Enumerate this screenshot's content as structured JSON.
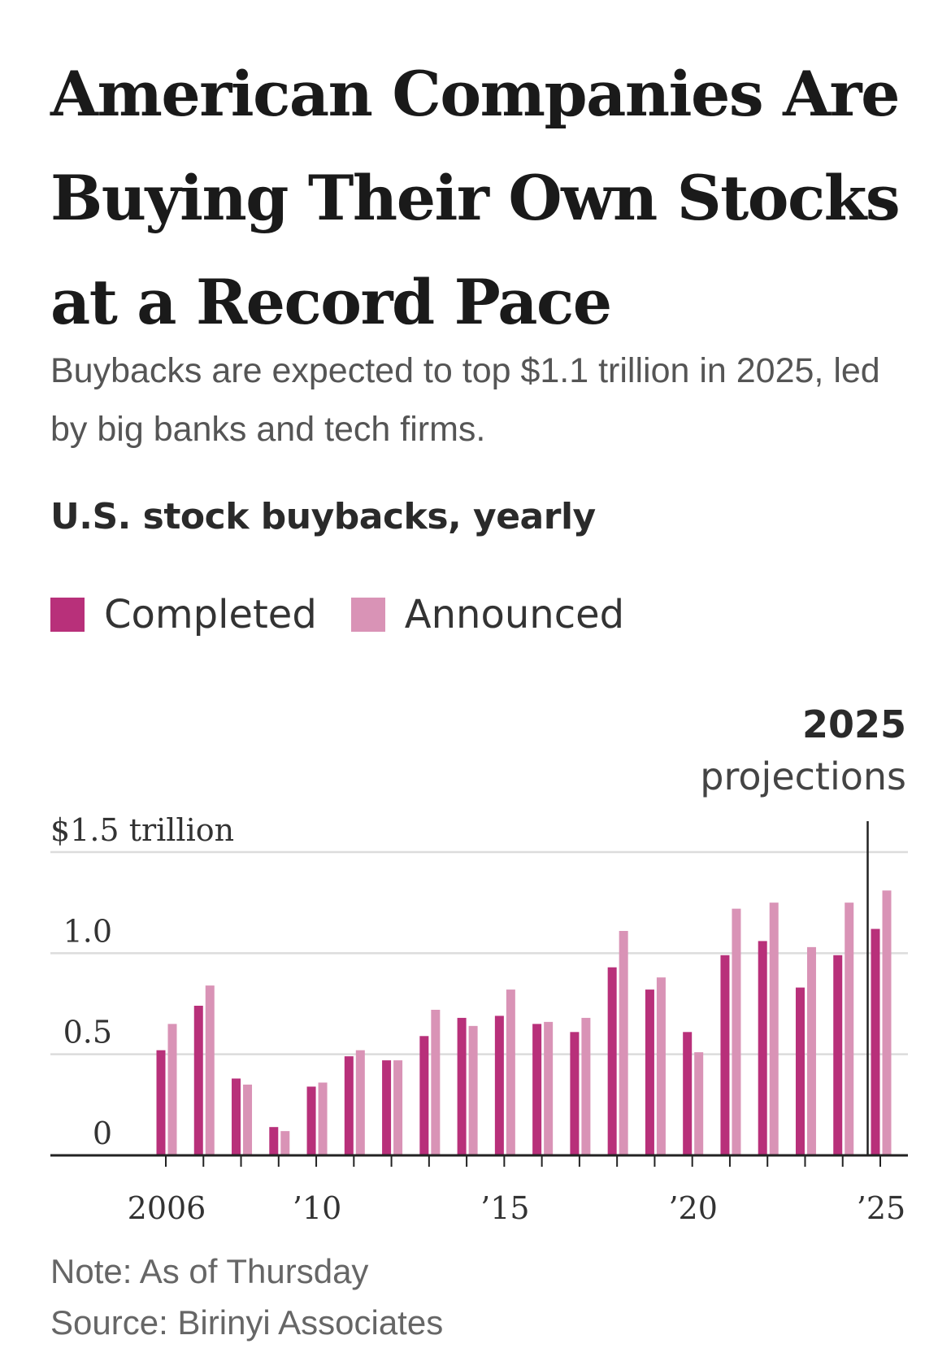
{
  "header": {
    "title": "American Companies Are Buying Their Own Stocks at a Record Pace",
    "subtitle": "Buybacks are expected to top $1.1 trillion in 2025, led by big banks and tech firms."
  },
  "chart_data": {
    "type": "bar",
    "title": "U.S. stock buybacks, yearly",
    "x": [
      2006,
      2007,
      2008,
      2009,
      2010,
      2011,
      2012,
      2013,
      2014,
      2015,
      2016,
      2017,
      2018,
      2019,
      2020,
      2021,
      2022,
      2023,
      2024,
      2025
    ],
    "series": [
      {
        "name": "Completed",
        "color": "#b8307a",
        "values": [
          0.52,
          0.74,
          0.38,
          0.14,
          0.34,
          0.49,
          0.47,
          0.59,
          0.68,
          0.69,
          0.65,
          0.61,
          0.93,
          0.82,
          0.61,
          0.99,
          1.06,
          0.83,
          0.99,
          1.12
        ]
      },
      {
        "name": "Announced",
        "color": "#d993b6",
        "values": [
          0.65,
          0.84,
          0.35,
          0.12,
          0.36,
          0.52,
          0.47,
          0.72,
          0.64,
          0.82,
          0.66,
          0.68,
          1.11,
          0.88,
          0.51,
          1.22,
          1.25,
          1.03,
          1.25,
          1.31
        ]
      }
    ],
    "ylim": [
      0,
      1.5
    ],
    "y_ticks": [
      {
        "value": 1.5,
        "label": "$1.5 trillion"
      },
      {
        "value": 1.0,
        "label": "1.0"
      },
      {
        "value": 0.5,
        "label": "0.5"
      },
      {
        "value": 0,
        "label": "0"
      }
    ],
    "x_ticks": [
      {
        "value": 2006,
        "label": "2006"
      },
      {
        "value": 2010,
        "label": "’10"
      },
      {
        "value": 2015,
        "label": "’15"
      },
      {
        "value": 2020,
        "label": "’20"
      },
      {
        "value": 2025,
        "label": "’25"
      }
    ],
    "grid": true,
    "legend_position": "top-left",
    "annotation": {
      "x": 2025,
      "year": "2025",
      "text": "projections"
    }
  },
  "footer": {
    "note": "Note: As of Thursday",
    "source": "Source: Birinyi Associates"
  }
}
